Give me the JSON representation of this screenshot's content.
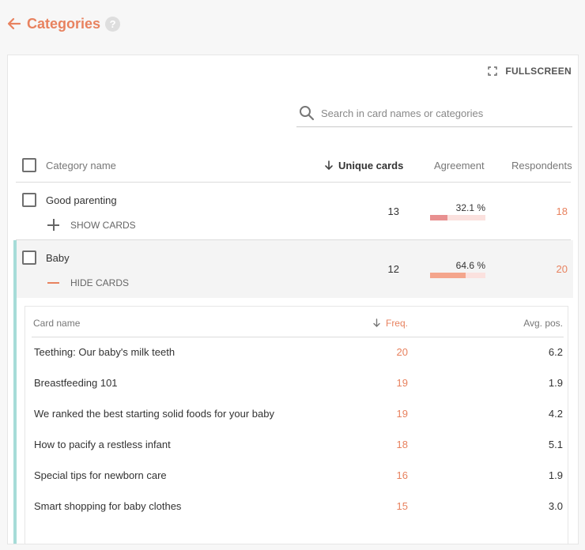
{
  "header": {
    "title": "Categories",
    "help": "?"
  },
  "toolbar": {
    "fullscreen_label": "FULLSCREEN"
  },
  "search": {
    "placeholder": "Search in card names or categories"
  },
  "table": {
    "columns": {
      "name": "Category name",
      "unique": "Unique cards",
      "agreement": "Agreement",
      "respondents": "Respondents"
    },
    "rows": [
      {
        "name": "Good parenting",
        "toggle": "SHOW CARDS",
        "unique": "13",
        "agreement_label": "32.1 %",
        "agreement": 32.1,
        "respondents": "18",
        "expanded": false
      },
      {
        "name": "Baby",
        "toggle": "HIDE CARDS",
        "unique": "12",
        "agreement_label": "64.6 %",
        "agreement": 64.6,
        "respondents": "20",
        "expanded": true
      }
    ]
  },
  "cards": {
    "columns": {
      "name": "Card name",
      "freq": "Freq.",
      "avg": "Avg. pos."
    },
    "rows": [
      {
        "name": "Teething: Our baby's milk teeth",
        "freq": "20",
        "avg": "6.2"
      },
      {
        "name": "Breastfeeding 101",
        "freq": "19",
        "avg": "1.9"
      },
      {
        "name": "We ranked the best starting solid foods for your baby",
        "freq": "19",
        "avg": "4.2"
      },
      {
        "name": "How to pacify a restless infant",
        "freq": "18",
        "avg": "5.1"
      },
      {
        "name": "Special tips for newborn care",
        "freq": "16",
        "avg": "1.9"
      },
      {
        "name": "Smart shopping for baby clothes",
        "freq": "15",
        "avg": "3.0"
      }
    ]
  },
  "colors": {
    "accent": "#e8825f",
    "teal": "#a6dcd8",
    "bar_low": "#e89090",
    "bar_high": "#f4a58c",
    "bar_track": "#fbe1de"
  },
  "icons": {
    "back": "arrow-left-icon",
    "help": "help-icon",
    "fullscreen": "fullscreen-icon",
    "search": "search-icon",
    "sort": "arrow-down-icon",
    "expand": "plus-icon",
    "collapse": "minus-icon"
  }
}
